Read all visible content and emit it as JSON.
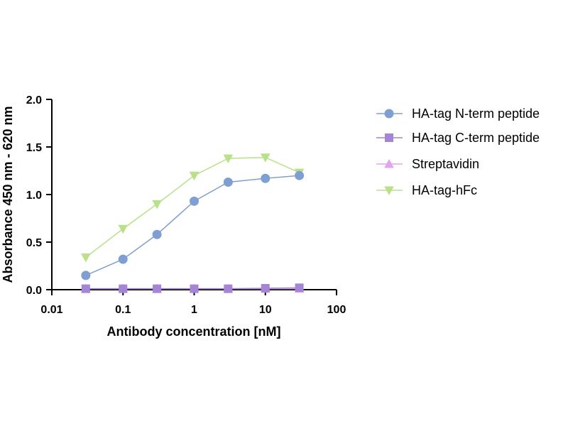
{
  "chart_data": {
    "type": "line",
    "title": "",
    "xlabel": "Antibody concentration [nM]",
    "ylabel": "Absorbance 450 nm - 620 nm",
    "x_scale": "log",
    "xlim": [
      0.01,
      100
    ],
    "ylim": [
      0,
      2
    ],
    "x_ticks": [
      "0.01",
      "0.1",
      "1",
      "10",
      "100"
    ],
    "y_ticks": [
      "0.0",
      "0.5",
      "1.0",
      "1.5",
      "2.0"
    ],
    "x": [
      0.03,
      0.1,
      0.3,
      1,
      3,
      10,
      30
    ],
    "grid": false,
    "legend_position": "right",
    "series": [
      {
        "name": "HA-tag N-term peptide",
        "marker": "circle",
        "color": "#7f9fd2",
        "values": [
          0.15,
          0.32,
          0.58,
          0.93,
          1.13,
          1.17,
          1.2
        ]
      },
      {
        "name": "HA-tag C-term peptide",
        "marker": "square",
        "color": "#a486d4",
        "values": [
          0.01,
          0.01,
          0.01,
          0.01,
          0.01,
          0.015,
          0.02
        ]
      },
      {
        "name": "Streptavidin",
        "marker": "triangle-up",
        "color": "#e3a3ef",
        "values": [
          0.01,
          0.01,
          0.01,
          0.01,
          0.01,
          0.01,
          0.01
        ]
      },
      {
        "name": "HA-tag-hFc",
        "marker": "triangle-down",
        "color": "#b8e18a",
        "values": [
          0.34,
          0.64,
          0.9,
          1.2,
          1.38,
          1.39,
          1.23
        ]
      }
    ]
  }
}
